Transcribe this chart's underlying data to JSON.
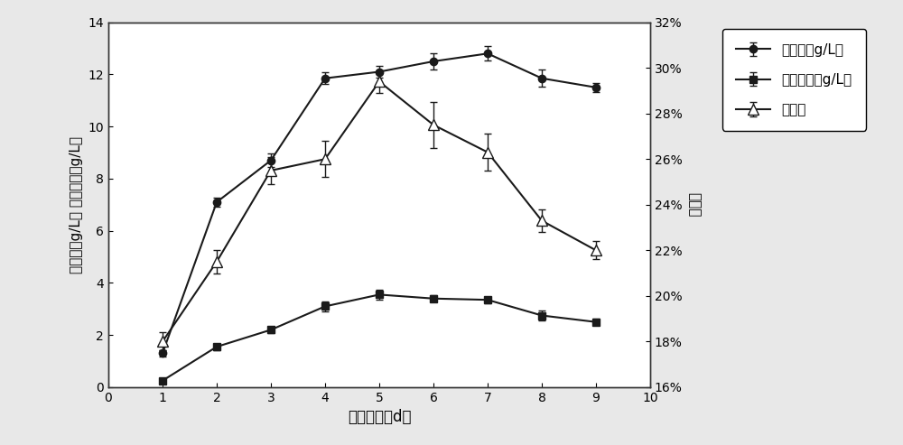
{
  "x": [
    1,
    2,
    3,
    4,
    5,
    6,
    7,
    8,
    9
  ],
  "biomass": [
    1.3,
    7.1,
    8.7,
    11.85,
    12.1,
    12.5,
    12.8,
    11.85,
    11.5
  ],
  "biomass_err": [
    0.12,
    0.18,
    0.25,
    0.22,
    0.22,
    0.32,
    0.28,
    0.32,
    0.18
  ],
  "lipid": [
    0.25,
    1.55,
    2.2,
    3.1,
    3.55,
    3.4,
    3.35,
    2.75,
    2.5
  ],
  "lipid_err": [
    0.06,
    0.12,
    0.12,
    0.18,
    0.18,
    0.12,
    0.12,
    0.18,
    0.12
  ],
  "oil_rate": [
    18.0,
    21.5,
    25.5,
    26.0,
    29.4,
    27.5,
    26.3,
    23.3,
    22.0
  ],
  "oil_rate_err": [
    0.4,
    0.5,
    0.6,
    0.8,
    0.5,
    1.0,
    0.8,
    0.5,
    0.4
  ],
  "xlabel": "发酵时间（d）",
  "ylabel_left": "生物量（g/L） 油脂产量（g/L）",
  "ylabel_right": "产油率",
  "legend1": "生物量（g/L）",
  "legend2": "油脂产量（g/L）",
  "legend3": "产油率",
  "xlim": [
    0,
    10
  ],
  "ylim_left": [
    0,
    14
  ],
  "ylim_right": [
    0.16,
    0.32
  ],
  "yticks_left": [
    0,
    2,
    4,
    6,
    8,
    10,
    12,
    14
  ],
  "yticks_right": [
    0.16,
    0.18,
    0.2,
    0.22,
    0.24,
    0.26,
    0.28,
    0.3,
    0.32
  ],
  "xticks": [
    0,
    1,
    2,
    3,
    4,
    5,
    6,
    7,
    8,
    9,
    10
  ],
  "line_color": "#1a1a1a",
  "plot_bg": "#ffffff",
  "fig_bg": "#e8e8e8"
}
